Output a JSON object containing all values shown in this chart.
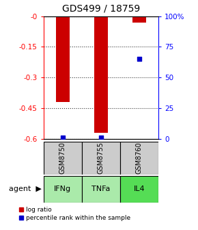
{
  "title": "GDS499 / 18759",
  "samples": [
    "GSM8750",
    "GSM8755",
    "GSM8760"
  ],
  "agents": [
    "IFNg",
    "TNFa",
    "IL4"
  ],
  "log_ratios": [
    -0.42,
    -0.57,
    -0.03
  ],
  "percentile_ranks": [
    1.0,
    1.0,
    65.0
  ],
  "ylim_left": [
    -0.6,
    0.0
  ],
  "ylim_right": [
    0,
    100
  ],
  "yticks_left": [
    0.0,
    -0.15,
    -0.3,
    -0.45,
    -0.6
  ],
  "ytick_labels_left": [
    "-0",
    "-0.15",
    "-0.3",
    "-0.45",
    "-0.6"
  ],
  "yticks_right": [
    0,
    25,
    50,
    75,
    100
  ],
  "ytick_labels_right": [
    "0",
    "25",
    "50",
    "75",
    "100%"
  ],
  "bar_color": "#cc0000",
  "percentile_color": "#0000cc",
  "sample_box_color": "#cccccc",
  "agent_box_color_light": "#aaeaaa",
  "agent_box_color_dark": "#55dd55",
  "agent_colors": [
    "#aaeaaa",
    "#aaeaaa",
    "#55dd55"
  ],
  "legend_log_label": "log ratio",
  "legend_pct_label": "percentile rank within the sample",
  "bar_width": 0.35
}
